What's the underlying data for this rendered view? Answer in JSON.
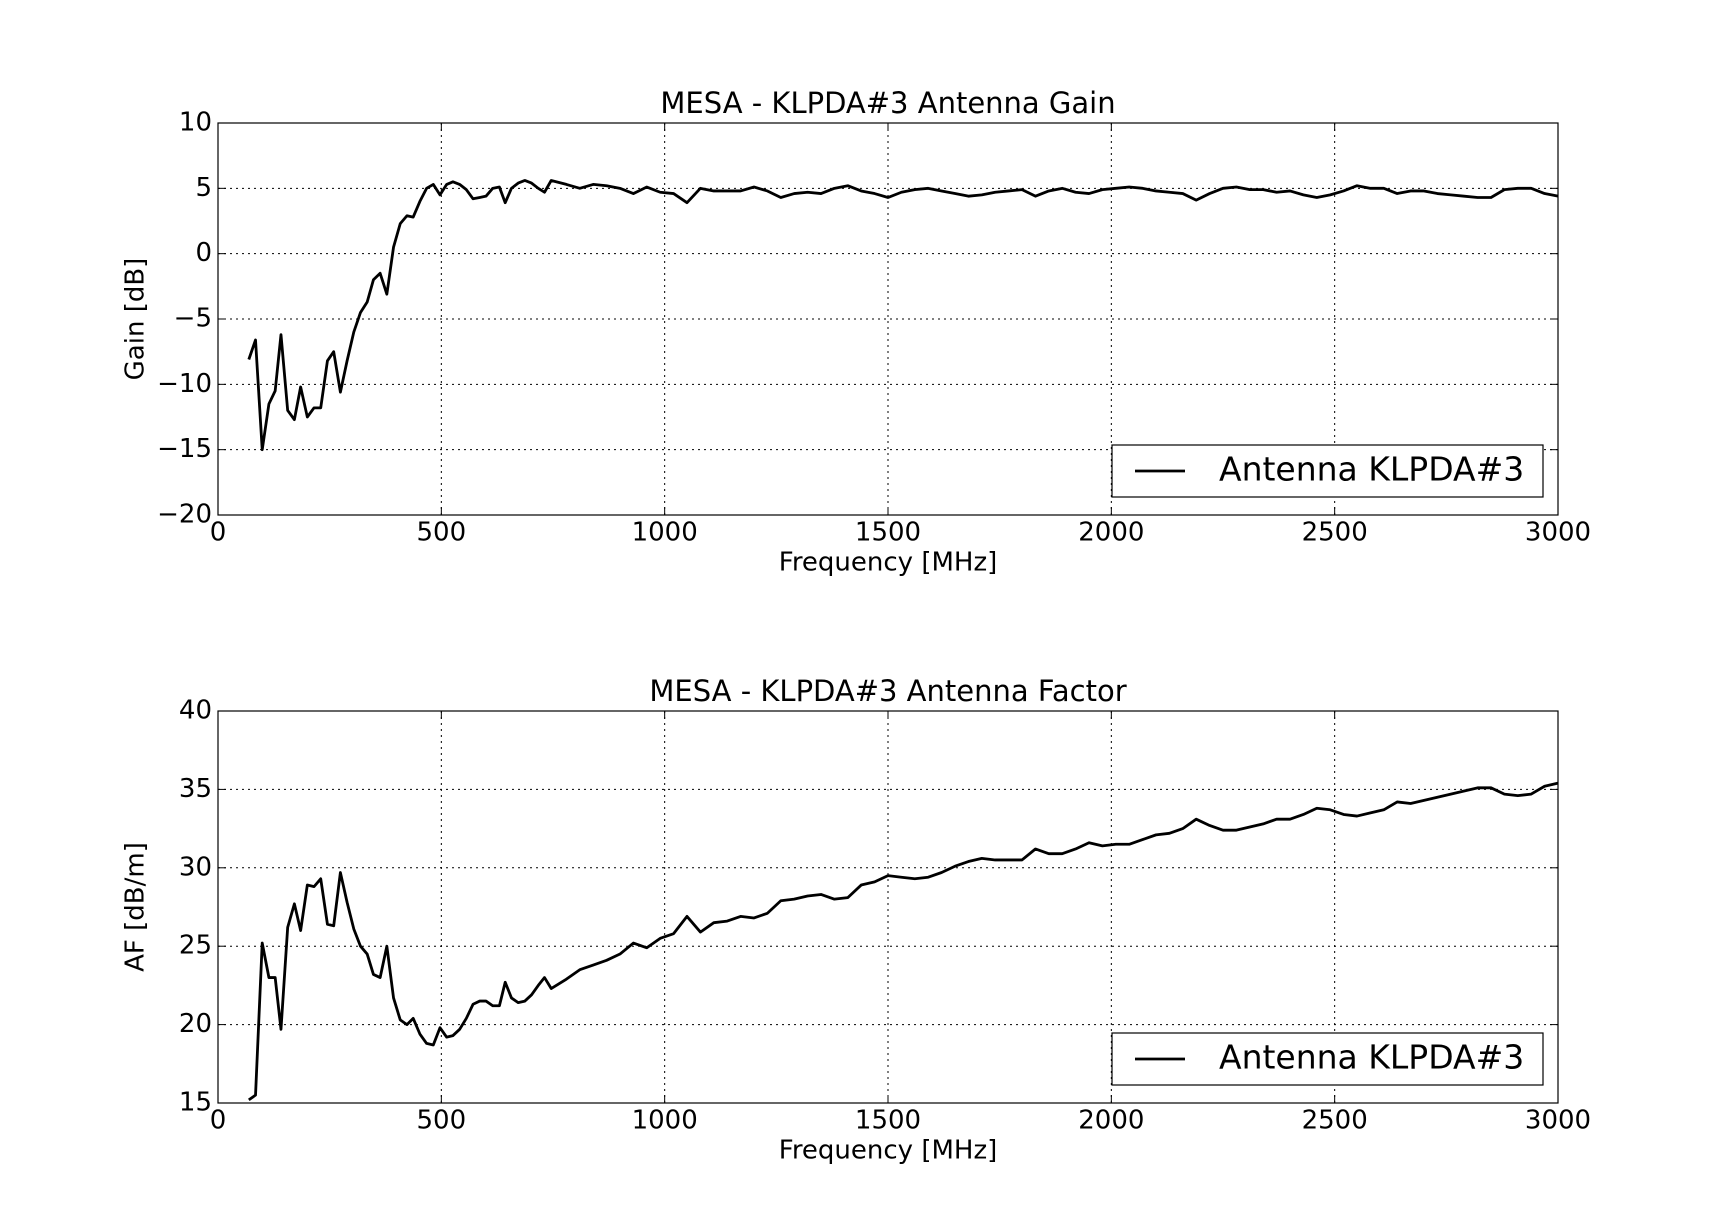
{
  "chart_data": [
    {
      "type": "line",
      "title": "MESA - KLPDA#3 Antenna Gain",
      "xlabel": "Frequency [MHz]",
      "ylabel": "Gain [dB]",
      "x": [
        69,
        84,
        99,
        114,
        128,
        141,
        156,
        171,
        185,
        200,
        215,
        230,
        245,
        259,
        274,
        289,
        304,
        319,
        334,
        348,
        363,
        378,
        393,
        408,
        423,
        437,
        452,
        467,
        482,
        497,
        512,
        526,
        541,
        556,
        571,
        586,
        600,
        615,
        630,
        643,
        657,
        672,
        687,
        702,
        717,
        731,
        746,
        780,
        810,
        840,
        870,
        900,
        930,
        960,
        990,
        1020,
        1050,
        1080,
        1110,
        1140,
        1170,
        1200,
        1230,
        1260,
        1290,
        1320,
        1350,
        1380,
        1410,
        1440,
        1470,
        1500,
        1530,
        1560,
        1590,
        1620,
        1650,
        1680,
        1710,
        1740,
        1770,
        1800,
        1830,
        1860,
        1890,
        1920,
        1950,
        1980,
        2010,
        2040,
        2070,
        2100,
        2130,
        2160,
        2190,
        2220,
        2250,
        2280,
        2310,
        2340,
        2370,
        2400,
        2430,
        2460,
        2490,
        2520,
        2550,
        2580,
        2610,
        2640,
        2670,
        2700,
        2730,
        2760,
        2790,
        2820,
        2850,
        2880,
        2910,
        2940,
        2970,
        3000
      ],
      "series": [
        {
          "name": "Antenna KLPDA#3",
          "color": "#000000",
          "values": [
            -8.1,
            -6.6,
            -15.0,
            -11.5,
            -10.5,
            -6.2,
            -12.0,
            -12.7,
            -10.2,
            -12.5,
            -11.8,
            -11.8,
            -8.2,
            -7.5,
            -10.6,
            -8.2,
            -6.0,
            -4.5,
            -3.7,
            -2.0,
            -1.5,
            -3.1,
            0.5,
            2.3,
            2.9,
            2.8,
            4.0,
            5.0,
            5.3,
            4.5,
            5.3,
            5.5,
            5.3,
            4.9,
            4.2,
            4.3,
            4.4,
            5.0,
            5.1,
            3.9,
            5.0,
            5.4,
            5.6,
            5.4,
            5.0,
            4.7,
            5.6,
            5.3,
            5.0,
            5.3,
            5.2,
            5.0,
            4.6,
            5.1,
            4.7,
            4.6,
            3.9,
            5.0,
            4.8,
            4.8,
            4.8,
            5.1,
            4.8,
            4.3,
            4.6,
            4.7,
            4.6,
            5.0,
            5.2,
            4.8,
            4.6,
            4.3,
            4.7,
            4.9,
            5.0,
            4.8,
            4.6,
            4.4,
            4.5,
            4.7,
            4.8,
            4.9,
            4.4,
            4.8,
            5.0,
            4.7,
            4.6,
            4.9,
            5.0,
            5.1,
            5.0,
            4.8,
            4.7,
            4.6,
            4.1,
            4.6,
            5.0,
            5.1,
            4.9,
            4.9,
            4.7,
            4.8,
            4.5,
            4.3,
            4.5,
            4.8,
            5.2,
            5.0,
            5.0,
            4.6,
            4.8,
            4.8,
            4.6,
            4.5,
            4.4,
            4.3,
            4.3,
            4.9,
            5.0,
            5.0,
            4.6,
            4.4
          ]
        }
      ],
      "xlim": [
        0,
        3000
      ],
      "ylim": [
        -20,
        10
      ],
      "xticks": [
        0,
        500,
        1000,
        1500,
        2000,
        2500,
        3000
      ],
      "yticks": [
        {
          "value": -20,
          "label": "−20"
        },
        {
          "value": -15,
          "label": "−15"
        },
        {
          "value": -10,
          "label": "−10"
        },
        {
          "value": -5,
          "label": "−5"
        },
        0,
        5,
        10
      ],
      "grid": true,
      "legend": "lower right"
    },
    {
      "type": "line",
      "title": "MESA - KLPDA#3 Antenna Factor",
      "xlabel": "Frequency [MHz]",
      "ylabel": "AF [dB/m]",
      "x": [
        69,
        84,
        99,
        114,
        128,
        141,
        156,
        171,
        185,
        200,
        215,
        230,
        245,
        259,
        274,
        289,
        304,
        319,
        334,
        348,
        363,
        378,
        393,
        408,
        423,
        437,
        452,
        467,
        482,
        497,
        512,
        526,
        541,
        556,
        571,
        586,
        600,
        615,
        630,
        643,
        657,
        672,
        687,
        702,
        717,
        731,
        746,
        780,
        810,
        840,
        870,
        900,
        930,
        960,
        990,
        1020,
        1050,
        1080,
        1110,
        1140,
        1170,
        1200,
        1230,
        1260,
        1290,
        1320,
        1350,
        1380,
        1410,
        1440,
        1470,
        1500,
        1530,
        1560,
        1590,
        1620,
        1650,
        1680,
        1710,
        1740,
        1770,
        1800,
        1830,
        1860,
        1890,
        1920,
        1950,
        1980,
        2010,
        2040,
        2070,
        2100,
        2130,
        2160,
        2190,
        2220,
        2250,
        2280,
        2310,
        2340,
        2370,
        2400,
        2430,
        2460,
        2490,
        2520,
        2550,
        2580,
        2610,
        2640,
        2670,
        2700,
        2730,
        2760,
        2790,
        2820,
        2850,
        2880,
        2910,
        2940,
        2970,
        3000
      ],
      "series": [
        {
          "name": "Antenna KLPDA#3",
          "color": "#000000",
          "values": [
            15.2,
            15.5,
            25.2,
            23.0,
            23.0,
            19.7,
            26.2,
            27.7,
            26.0,
            28.9,
            28.8,
            29.3,
            26.4,
            26.3,
            29.7,
            27.8,
            26.1,
            25.0,
            24.5,
            23.2,
            23.0,
            25.0,
            21.7,
            20.3,
            20.0,
            20.4,
            19.4,
            18.8,
            18.7,
            19.8,
            19.2,
            19.3,
            19.7,
            20.4,
            21.3,
            21.5,
            21.5,
            21.2,
            21.2,
            22.7,
            21.7,
            21.4,
            21.5,
            21.9,
            22.5,
            23.0,
            22.3,
            22.9,
            23.5,
            23.8,
            24.1,
            24.5,
            25.2,
            24.9,
            25.5,
            25.8,
            26.9,
            25.9,
            26.5,
            26.6,
            26.9,
            26.8,
            27.1,
            27.9,
            28.0,
            28.2,
            28.3,
            28.0,
            28.1,
            28.9,
            29.1,
            29.5,
            29.4,
            29.3,
            29.4,
            29.7,
            30.1,
            30.4,
            30.6,
            30.5,
            30.5,
            30.5,
            31.2,
            30.9,
            30.9,
            31.2,
            31.6,
            31.4,
            31.5,
            31.5,
            31.8,
            32.1,
            32.2,
            32.5,
            33.1,
            32.7,
            32.4,
            32.4,
            32.6,
            32.8,
            33.1,
            33.1,
            33.4,
            33.8,
            33.7,
            33.4,
            33.3,
            33.5,
            33.7,
            34.2,
            34.1,
            34.3,
            34.5,
            34.7,
            34.9,
            35.1,
            35.1,
            34.7,
            34.6,
            34.7,
            35.2,
            35.4
          ]
        }
      ],
      "xlim": [
        0,
        3000
      ],
      "ylim": [
        15,
        40
      ],
      "xticks": [
        0,
        500,
        1000,
        1500,
        2000,
        2500,
        3000
      ],
      "yticks": [
        15,
        20,
        25,
        30,
        35,
        40
      ],
      "grid": true,
      "legend": "lower right"
    }
  ]
}
